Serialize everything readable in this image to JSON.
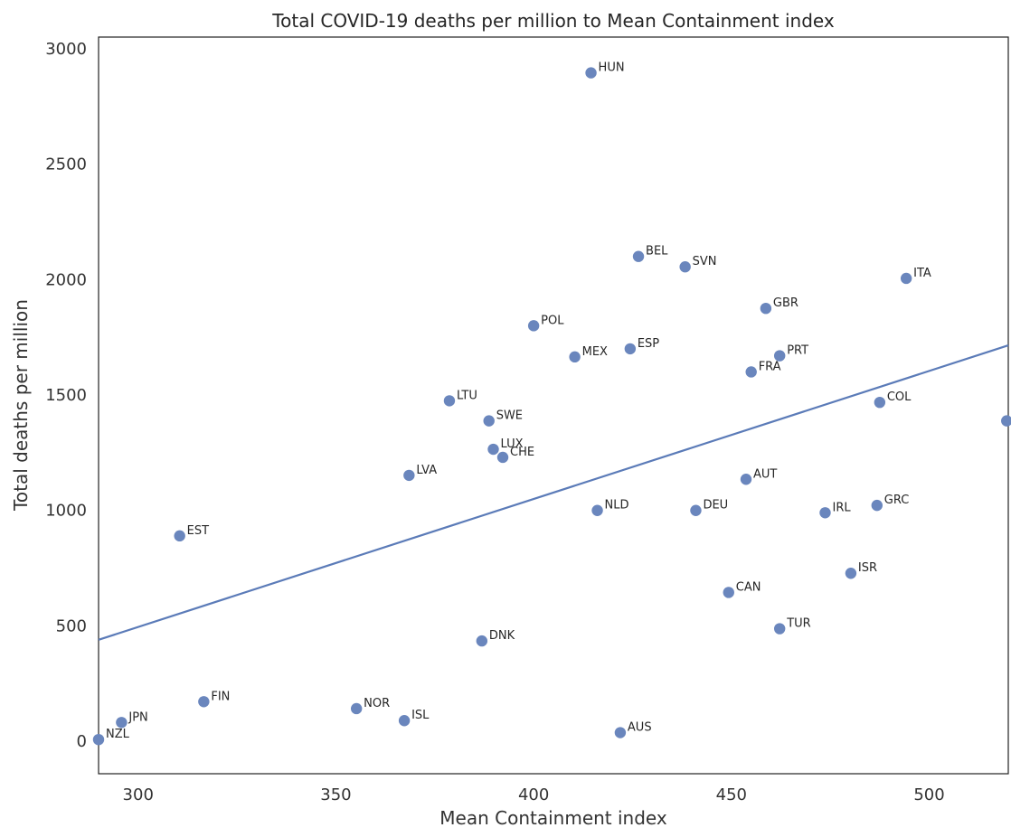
{
  "chart_data": {
    "type": "scatter",
    "title": "Total COVID-19 deaths per million to Mean Containment index",
    "xlabel": "Mean Containment index",
    "ylabel": "Total deaths per million",
    "xlim": [
      290,
      520
    ],
    "ylim": [
      -140,
      3050
    ],
    "x_ticks": [
      300,
      350,
      400,
      450,
      500
    ],
    "y_ticks": [
      0,
      500,
      1000,
      1500,
      2000,
      2500,
      3000
    ],
    "grid": false,
    "legend": "none",
    "colors": {
      "points": "#6a86bd",
      "trend_line": "#5b7bb8",
      "text": "#262626",
      "background": "#ffffff",
      "border": "#222222"
    },
    "points": [
      {
        "label": "HUN",
        "x": 414.5,
        "y": 2895
      },
      {
        "label": "BEL",
        "x": 426.5,
        "y": 2100
      },
      {
        "label": "SVN",
        "x": 438.3,
        "y": 2055
      },
      {
        "label": "ITA",
        "x": 494.2,
        "y": 2005
      },
      {
        "label": "GBR",
        "x": 458.7,
        "y": 1875
      },
      {
        "label": "POL",
        "x": 400.0,
        "y": 1800
      },
      {
        "label": "ESP",
        "x": 424.4,
        "y": 1700
      },
      {
        "label": "MEX",
        "x": 410.4,
        "y": 1665
      },
      {
        "label": "PRT",
        "x": 462.2,
        "y": 1670
      },
      {
        "label": "FRA",
        "x": 455.0,
        "y": 1600
      },
      {
        "label": "LTU",
        "x": 378.7,
        "y": 1475
      },
      {
        "label": "COL",
        "x": 487.5,
        "y": 1468
      },
      {
        "label": "SWE",
        "x": 388.7,
        "y": 1388
      },
      {
        "label": "",
        "x": 519.6,
        "y": 1388
      },
      {
        "label": "LUX",
        "x": 389.8,
        "y": 1265
      },
      {
        "label": "CHE",
        "x": 392.2,
        "y": 1230
      },
      {
        "label": "LVA",
        "x": 368.5,
        "y": 1152
      },
      {
        "label": "AUT",
        "x": 453.7,
        "y": 1135
      },
      {
        "label": "NLD",
        "x": 416.1,
        "y": 1000
      },
      {
        "label": "DEU",
        "x": 441.0,
        "y": 1000
      },
      {
        "label": "IRL",
        "x": 473.7,
        "y": 990
      },
      {
        "label": "GRC",
        "x": 486.8,
        "y": 1022
      },
      {
        "label": "EST",
        "x": 310.5,
        "y": 890
      },
      {
        "label": "ISR",
        "x": 480.2,
        "y": 728
      },
      {
        "label": "CAN",
        "x": 449.3,
        "y": 645
      },
      {
        "label": "TUR",
        "x": 462.2,
        "y": 488
      },
      {
        "label": "DNK",
        "x": 386.9,
        "y": 435
      },
      {
        "label": "FIN",
        "x": 316.6,
        "y": 172
      },
      {
        "label": "NOR",
        "x": 355.2,
        "y": 142
      },
      {
        "label": "ISL",
        "x": 367.3,
        "y": 90
      },
      {
        "label": "JPN",
        "x": 295.8,
        "y": 82
      },
      {
        "label": "AUS",
        "x": 421.9,
        "y": 38
      },
      {
        "label": "NZL",
        "x": 290.0,
        "y": 8
      }
    ],
    "trend_line": {
      "x": [
        290,
        520
      ],
      "y": [
        440,
        1715
      ]
    }
  }
}
